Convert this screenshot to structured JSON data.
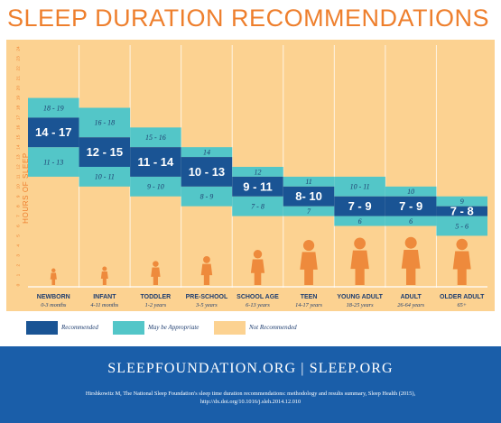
{
  "title": "SLEEP DURATION RECOMMENDATIONS",
  "colors": {
    "recommended": "#1a5494",
    "may_be_appropriate": "#53c6c8",
    "not_recommended": "#fcd291",
    "title": "#ee7f2d",
    "footer": "#1a5ea9"
  },
  "legend": {
    "recommended": "Recommended",
    "may_be_appropriate": "May be Appropriate",
    "not_recommended": "Not Recommended"
  },
  "footer": {
    "sites": "SLEEPFOUNDATION.ORG | SLEEP.ORG",
    "citation_line1": "Hirshkowitz M, The National Sleep Foundation's sleep time duration recommendations: methodology and results summary, Sleep Health (2015),",
    "citation_line2": "http://dx.doi.org/10.1016/j.sleh.2014.12.010"
  },
  "chart_data": {
    "type": "bar",
    "ylabel": "HOURS OF SLEEP",
    "ylim": [
      0,
      24
    ],
    "yticks": [
      0,
      1,
      2,
      3,
      4,
      5,
      6,
      7,
      8,
      9,
      10,
      11,
      12,
      13,
      14,
      15,
      16,
      17,
      18,
      19,
      20,
      21,
      22,
      23,
      24
    ],
    "categories": [
      {
        "name": "NEWBORN",
        "ages": "0-3 months"
      },
      {
        "name": "INFANT",
        "ages": "4-11 months"
      },
      {
        "name": "TODDLER",
        "ages": "1-2 years"
      },
      {
        "name": "PRE-SCHOOL",
        "ages": "3-5 years"
      },
      {
        "name": "SCHOOL AGE",
        "ages": "6-13 years"
      },
      {
        "name": "TEEN",
        "ages": "14-17 years"
      },
      {
        "name": "YOUNG ADULT",
        "ages": "18-25 years"
      },
      {
        "name": "ADULT",
        "ages": "26-64 years"
      },
      {
        "name": "OLDER ADULT",
        "ages": "65+"
      }
    ],
    "series": [
      {
        "name": "Recommended",
        "ranges": [
          [
            14,
            17
          ],
          [
            12,
            15
          ],
          [
            11,
            14
          ],
          [
            10,
            13
          ],
          [
            9,
            11
          ],
          [
            8,
            10
          ],
          [
            7,
            9
          ],
          [
            7,
            9
          ],
          [
            7,
            8
          ]
        ],
        "labels": [
          "14 - 17",
          "12 - 15",
          "11 - 14",
          "10 - 13",
          "9 - 11",
          "8- 10",
          "7 - 9",
          "7 - 9",
          "7 - 8"
        ]
      },
      {
        "name": "May be Appropriate (upper)",
        "ranges": [
          [
            17,
            19
          ],
          [
            15,
            18
          ],
          [
            14,
            16
          ],
          [
            13,
            14
          ],
          [
            11,
            12
          ],
          [
            10,
            11
          ],
          [
            9,
            11
          ],
          [
            9,
            10
          ],
          [
            8,
            9
          ]
        ],
        "labels": [
          "18 - 19",
          "16 - 18",
          "15 - 16",
          "14",
          "12",
          "11",
          "10 - 11",
          "10",
          "9"
        ]
      },
      {
        "name": "May be Appropriate (lower)",
        "ranges": [
          [
            11,
            14
          ],
          [
            10,
            12
          ],
          [
            9,
            11
          ],
          [
            8,
            10
          ],
          [
            7,
            9
          ],
          [
            7,
            8
          ],
          [
            6,
            7
          ],
          [
            6,
            7
          ],
          [
            5,
            7
          ]
        ],
        "labels": [
          "11 - 13",
          "10 - 11",
          "9 - 10",
          "8 - 9",
          "7 - 8",
          "7",
          "6",
          "6",
          "5 - 6"
        ]
      }
    ]
  }
}
